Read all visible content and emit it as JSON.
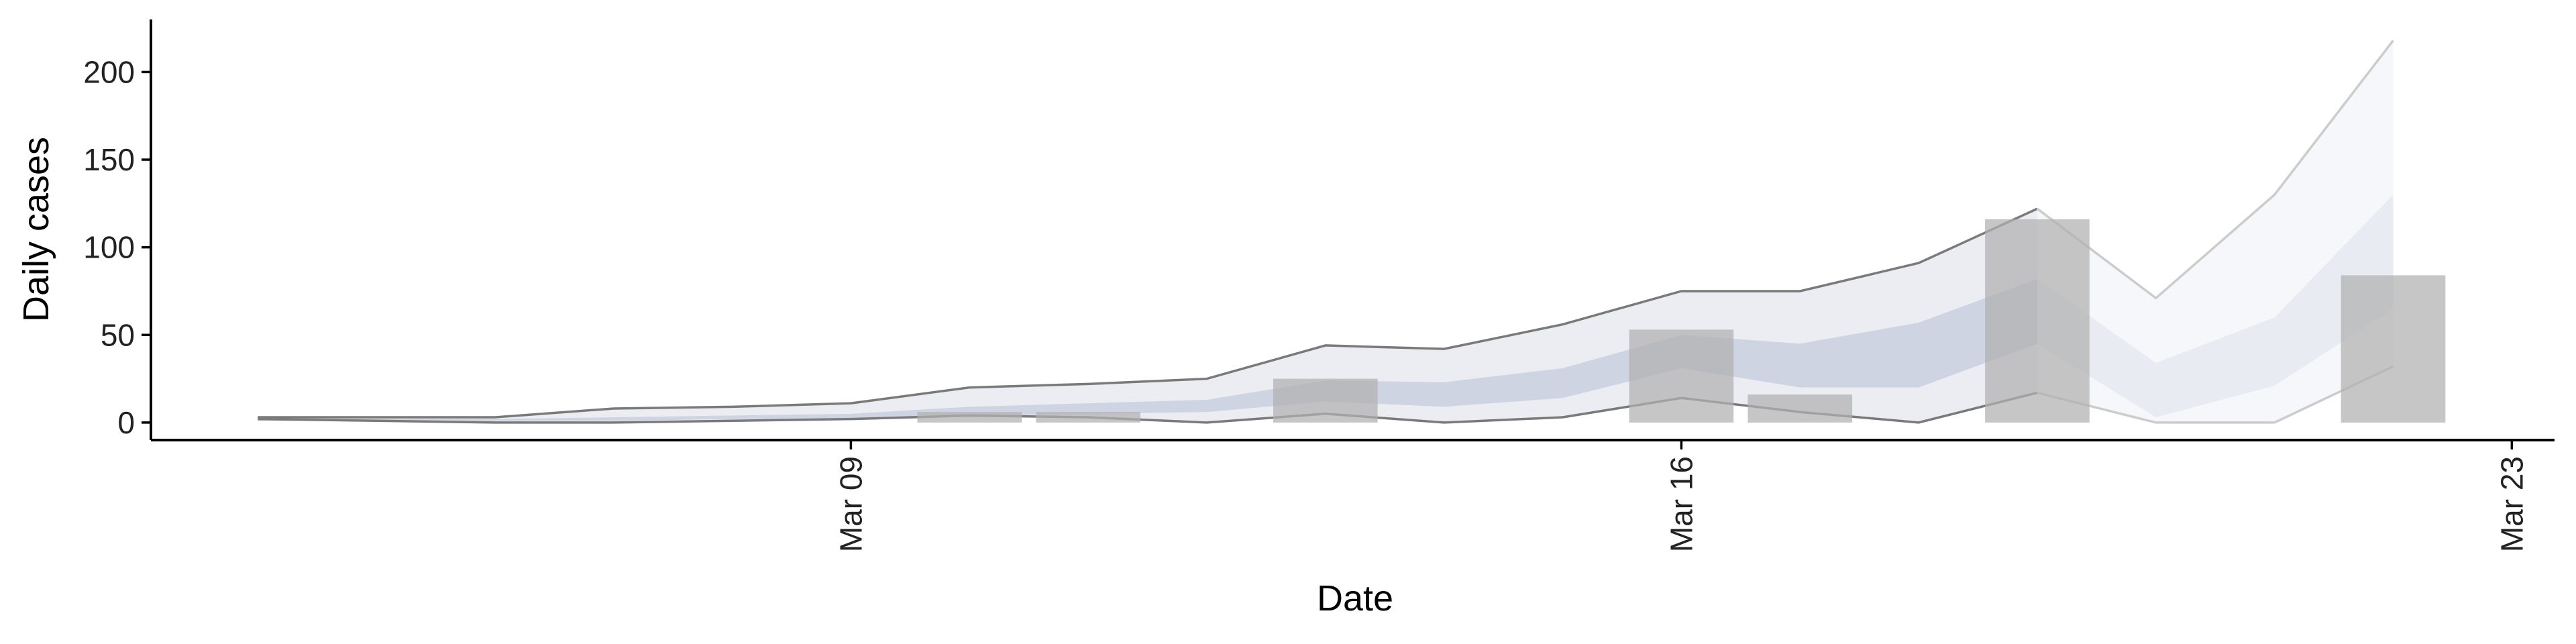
{
  "chart_data": {
    "type": "interval-bar",
    "xlabel": "Date",
    "ylabel": "Daily cases",
    "x": [
      "Mar 04",
      "Mar 05",
      "Mar 06",
      "Mar 07",
      "Mar 08",
      "Mar 09",
      "Mar 10",
      "Mar 11",
      "Mar 12",
      "Mar 13",
      "Mar 14",
      "Mar 15",
      "Mar 16",
      "Mar 17",
      "Mar 18",
      "Mar 19",
      "Mar 20",
      "Mar 21",
      "Mar 22"
    ],
    "xlim": [
      "Mar 03",
      "Mar 23"
    ],
    "xticks": [
      "Mar 09",
      "Mar 16",
      "Mar 23"
    ],
    "ylim": [
      -10,
      230
    ],
    "yticks": [
      0,
      50,
      100,
      150,
      200
    ],
    "bars": {
      "color": "#b0b0b0",
      "values": [
        null,
        null,
        null,
        null,
        null,
        null,
        6,
        6,
        null,
        25,
        null,
        null,
        53,
        16,
        null,
        116,
        null,
        null,
        84
      ]
    },
    "intervals": [
      {
        "color": "#ecedf3",
        "line_color": "#7a7a7a",
        "lower": [
          2,
          1,
          0,
          0,
          1,
          2,
          4,
          3,
          0,
          5,
          0,
          3,
          14,
          6,
          0,
          17,
          null,
          null,
          null
        ],
        "upper": [
          3,
          3,
          3,
          8,
          9,
          11,
          20,
          22,
          25,
          44,
          42,
          56,
          75,
          75,
          91,
          122,
          null,
          null,
          null
        ]
      },
      {
        "color": "#f6f7fa",
        "line_color": "#cccccc",
        "lower": [
          null,
          null,
          null,
          null,
          null,
          null,
          null,
          null,
          null,
          null,
          null,
          null,
          null,
          null,
          null,
          17,
          0,
          0,
          32
        ],
        "upper": [
          null,
          null,
          null,
          null,
          null,
          null,
          null,
          null,
          null,
          null,
          null,
          null,
          null,
          null,
          null,
          122,
          71,
          130,
          218
        ]
      },
      {
        "color": "#cfd4e3",
        "lower": [
          1,
          1,
          1,
          1,
          2,
          2,
          4,
          5,
          6,
          12,
          9,
          14,
          31,
          20,
          20,
          45,
          null,
          null,
          null
        ],
        "upper": [
          2,
          2,
          2,
          3,
          4,
          5,
          9,
          11,
          13,
          24,
          23,
          31,
          50,
          45,
          57,
          82,
          null,
          null,
          null
        ]
      },
      {
        "color": "#e9ebf2",
        "lower": [
          null,
          null,
          null,
          null,
          null,
          null,
          null,
          null,
          null,
          null,
          null,
          null,
          null,
          null,
          null,
          45,
          3,
          21,
          65
        ],
        "upper": [
          null,
          null,
          null,
          null,
          null,
          null,
          null,
          null,
          null,
          null,
          null,
          null,
          null,
          null,
          null,
          82,
          34,
          60,
          130
        ]
      }
    ]
  }
}
